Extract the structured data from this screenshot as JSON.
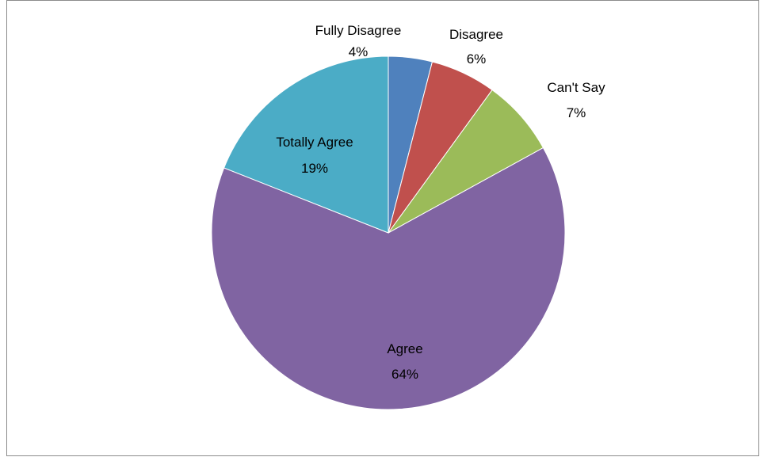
{
  "chart_data": {
    "type": "pie",
    "title": "",
    "start_angle_deg": 0,
    "direction": "clockwise",
    "slices": [
      {
        "label": "Fully Disagree",
        "value": 4,
        "value_label": "4%",
        "color": "#4f81bd"
      },
      {
        "label": "Disagree",
        "value": 6,
        "value_label": "6%",
        "color": "#c0504d"
      },
      {
        "label": "Can't Say",
        "value": 7,
        "value_label": "7%",
        "color": "#9bbb59"
      },
      {
        "label": "Agree",
        "value": 64,
        "value_label": "64%",
        "color": "#8064a2"
      },
      {
        "label": "Totally Agree",
        "value": 19,
        "value_label": "19%",
        "color": "#4bacc6"
      }
    ],
    "legend": "none"
  }
}
